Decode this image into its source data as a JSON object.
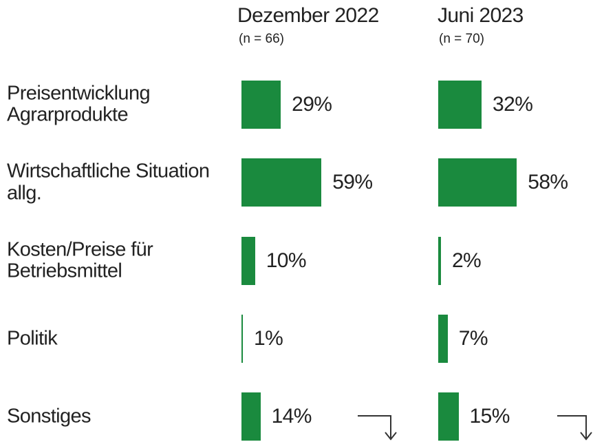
{
  "chart_data": {
    "type": "bar",
    "categories": [
      "Preisentwicklung Agrarprodukte",
      "Wirtschaftliche Situation allg.",
      "Kosten/Preise für Betriebsmittel",
      "Politik",
      "Sonstiges"
    ],
    "series": [
      {
        "name": "Dezember 2022",
        "note": "(n = 66)",
        "color": "#1a8a3e",
        "values": [
          29,
          59,
          10,
          1,
          14
        ],
        "value_labels": [
          "29%",
          "59%",
          "10%",
          "1%",
          "14%"
        ]
      },
      {
        "name": "Juni 2023",
        "note": "(n = 70)",
        "color": "#1a8a3e",
        "values": [
          32,
          58,
          2,
          7,
          15
        ],
        "value_labels": [
          "32%",
          "58%",
          "2%",
          "7%",
          "15%"
        ]
      }
    ]
  }
}
